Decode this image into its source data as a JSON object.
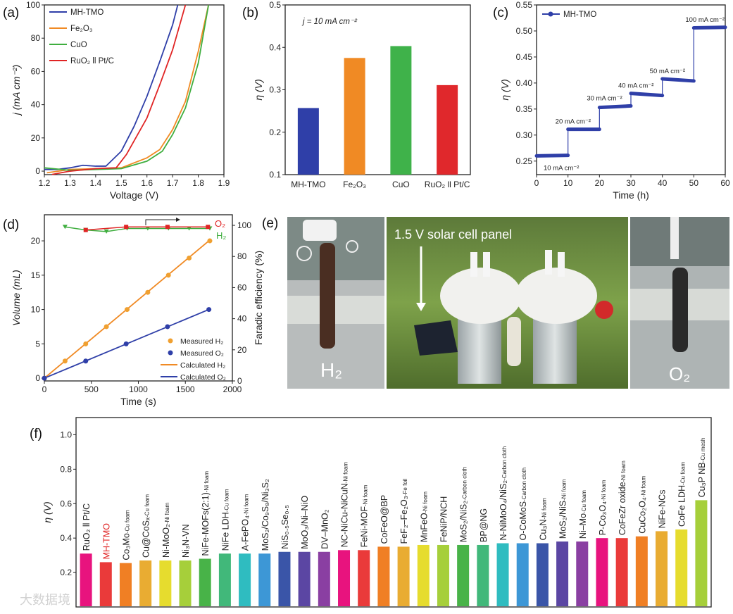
{
  "panel_labels": [
    "(a)",
    "(b)",
    "(c)",
    "(d)",
    "(e)",
    "(f)"
  ],
  "watermark": "大数据境",
  "chart_data": [
    {
      "id": "a",
      "type": "line",
      "xlabel": "Voltage (V)",
      "ylabel": "j (mA cm⁻²)",
      "xlim": [
        1.2,
        1.9
      ],
      "ylim": [
        -2.1,
        100
      ],
      "xticks": [
        1.2,
        1.3,
        1.4,
        1.5,
        1.6,
        1.7,
        1.8,
        1.9
      ],
      "yticks": [
        0,
        20,
        40,
        60,
        80,
        100
      ],
      "legend_position": "top-left",
      "series": [
        {
          "name": "MH-TMO",
          "color": "#2f3fa8",
          "points": [
            [
              1.2,
              1
            ],
            [
              1.25,
              1
            ],
            [
              1.3,
              2
            ],
            [
              1.35,
              3.5
            ],
            [
              1.4,
              3
            ],
            [
              1.44,
              3
            ],
            [
              1.5,
              12
            ],
            [
              1.55,
              27
            ],
            [
              1.6,
              45
            ],
            [
              1.65,
              66
            ],
            [
              1.7,
              88
            ],
            [
              1.72,
              100
            ]
          ]
        },
        {
          "name": "Fe₂O₃",
          "color": "#f08a24",
          "points": [
            [
              1.21,
              -1
            ],
            [
              1.3,
              1
            ],
            [
              1.4,
              1.5
            ],
            [
              1.5,
              2
            ],
            [
              1.6,
              8
            ],
            [
              1.65,
              13
            ],
            [
              1.7,
              25
            ],
            [
              1.75,
              42
            ],
            [
              1.8,
              72
            ],
            [
              1.84,
              100
            ]
          ]
        },
        {
          "name": "CuO",
          "color": "#3fae3f",
          "points": [
            [
              1.2,
              2
            ],
            [
              1.3,
              0.5
            ],
            [
              1.4,
              1
            ],
            [
              1.5,
              1.5
            ],
            [
              1.6,
              6
            ],
            [
              1.66,
              12
            ],
            [
              1.7,
              22
            ],
            [
              1.75,
              38
            ],
            [
              1.8,
              65
            ],
            [
              1.84,
              100
            ]
          ]
        },
        {
          "name": "RuO₂ ll Pt/C",
          "color": "#e02424",
          "points": [
            [
              1.23,
              -2
            ],
            [
              1.3,
              0
            ],
            [
              1.4,
              1.5
            ],
            [
              1.48,
              2
            ],
            [
              1.52,
              10
            ],
            [
              1.6,
              32
            ],
            [
              1.65,
              52
            ],
            [
              1.7,
              73
            ],
            [
              1.75,
              100
            ]
          ]
        }
      ]
    },
    {
      "id": "b",
      "type": "bar",
      "annotation": "j = 10 mA cm⁻²",
      "xlabel": "",
      "ylabel": "η (V)",
      "ylim": [
        0.1,
        0.5
      ],
      "yticks": [
        0.1,
        0.2,
        0.3,
        0.4,
        0.5
      ],
      "categories": [
        "MH-TMO",
        "Fe₂O₃",
        "CuO",
        "RuO₂ ll Pt/C"
      ],
      "values": [
        0.257,
        0.375,
        0.403,
        0.311
      ],
      "colors": [
        "#2f3fa8",
        "#f08a24",
        "#3fb24a",
        "#e0282c"
      ]
    },
    {
      "id": "c",
      "type": "line",
      "xlabel": "Time (h)",
      "ylabel": "η (V)",
      "xlim": [
        0,
        60
      ],
      "ylim": [
        0.224,
        0.55
      ],
      "xticks": [
        0,
        10,
        20,
        30,
        40,
        50,
        60
      ],
      "yticks": [
        0.25,
        0.3,
        0.35,
        0.4,
        0.45,
        0.5,
        0.55
      ],
      "legend": "MH-TMO",
      "legend_position": "top-left",
      "color": "#2f3fa8",
      "steps": [
        {
          "x": [
            0,
            10
          ],
          "y": [
            0.26,
            0.261
          ],
          "label": "10 mA cm⁻²"
        },
        {
          "x": [
            10,
            20
          ],
          "y": [
            0.311,
            0.311
          ],
          "label": "20 mA cm⁻²"
        },
        {
          "x": [
            20,
            30
          ],
          "y": [
            0.353,
            0.356
          ],
          "label": "30 mA cm⁻²"
        },
        {
          "x": [
            30,
            40
          ],
          "y": [
            0.38,
            0.376
          ],
          "label": "40 mA cm⁻²"
        },
        {
          "x": [
            40,
            50
          ],
          "y": [
            0.408,
            0.404
          ],
          "label": "50 mA cm⁻²"
        },
        {
          "x": [
            50,
            60
          ],
          "y": [
            0.506,
            0.507
          ],
          "label": "100 mA cm⁻²"
        }
      ]
    },
    {
      "id": "d",
      "type": "scatter",
      "xlabel": "Time (s)",
      "ylabel": "Volume (mL)",
      "y2label": "Faradic efficiency (%)",
      "xlim": [
        0,
        2000
      ],
      "ylim": [
        -0.4,
        23.8
      ],
      "y2lim": [
        0,
        106.8
      ],
      "xticks": [
        0,
        500,
        1000,
        1500,
        2000
      ],
      "yticks": [
        0,
        5,
        10,
        15,
        20
      ],
      "y2ticks": [
        0,
        20,
        40,
        60,
        80,
        100
      ],
      "legend_position": "bottom-right",
      "measured_h2": {
        "name": "Measured H₂",
        "color": "#f0a030",
        "x": [
          0,
          220,
          440,
          660,
          880,
          1100,
          1320,
          1540,
          1760
        ],
        "y": [
          0,
          2.5,
          5,
          7.5,
          10,
          12.5,
          15,
          17.5,
          20
        ]
      },
      "measured_o2": {
        "name": "Measured O₂",
        "color": "#2f3fa8",
        "x": [
          0,
          440,
          870,
          1310,
          1750
        ],
        "y": [
          0,
          2.5,
          5,
          7.5,
          10
        ]
      },
      "calculated_h2": {
        "name": "Calculated H₂",
        "color": "#f08a24",
        "x": [
          0,
          1750
        ],
        "y": [
          0,
          20
        ]
      },
      "calculated_o2": {
        "name": "Calculated O₂",
        "color": "#2f3fa8",
        "x": [
          0,
          1750
        ],
        "y": [
          0,
          10
        ]
      },
      "fe_o2": {
        "name": "O₂",
        "color": "#e02424",
        "x": [
          440,
          870,
          1310,
          1740
        ],
        "y": [
          97,
          99,
          99,
          99
        ]
      },
      "fe_h2": {
        "name": "H₂",
        "color": "#3fae3f",
        "x": [
          220,
          440,
          660,
          880,
          1100,
          1320,
          1540,
          1760
        ],
        "y": [
          99,
          97,
          96,
          98,
          98,
          98,
          98,
          98
        ]
      }
    },
    {
      "id": "f",
      "type": "bar",
      "xlabel": "",
      "ylabel": "η (V)",
      "ylim": [
        0,
        1.1
      ],
      "yticks": [
        0.2,
        0.4,
        0.6,
        0.8,
        1.0
      ],
      "highlight_color": "#e02424",
      "bars": [
        {
          "name": "RuO₂ ll Pt/C",
          "sub": "",
          "value": 0.31,
          "color": "#e8137e"
        },
        {
          "name": "MH-TMO",
          "sub": "",
          "value": 0.26,
          "color": "#ea3a3a",
          "highlight": true
        },
        {
          "name": "Co₃Mo",
          "sub": "-Cu foam",
          "value": 0.255,
          "color": "#f07f24"
        },
        {
          "name": "Cu@CoSₓ",
          "sub": "-Cu foam",
          "value": 0.27,
          "color": "#e9ac32"
        },
        {
          "name": "Ni-MoO₂",
          "sub": "-Ni foam",
          "value": 0.27,
          "color": "#e6dc2e"
        },
        {
          "name": "Ni₃N-VN",
          "sub": "",
          "value": 0.27,
          "color": "#a6cf3a"
        },
        {
          "name": "NiFe-MOFs(2:1)",
          "sub": "-Ni foam",
          "value": 0.28,
          "color": "#48b348"
        },
        {
          "name": "NiFe LDH",
          "sub": "-Cu foam",
          "value": 0.31,
          "color": "#41b87a"
        },
        {
          "name": "A-FePO₄",
          "sub": "-Ni foam",
          "value": 0.31,
          "color": "#2fbcc0"
        },
        {
          "name": "MoS₂/Co₉S₈/Ni₃S₂",
          "sub": "",
          "value": 0.31,
          "color": "#3d97d6"
        },
        {
          "name": "NiS₀.₅Se₀.₅",
          "sub": "",
          "value": 0.32,
          "color": "#3a55a8"
        },
        {
          "name": "MoO₃/Ni–NiO",
          "sub": "",
          "value": 0.32,
          "color": "#5b46a3"
        },
        {
          "name": "DV–MnO₂",
          "sub": "",
          "value": 0.32,
          "color": "#8a3fa2"
        },
        {
          "name": "NC-NiCu-NiCuN",
          "sub": "-Ni foam",
          "value": 0.33,
          "color": "#e8137e"
        },
        {
          "name": "FeNi-MOF",
          "sub": "-Ni foam",
          "value": 0.33,
          "color": "#ea3a3a"
        },
        {
          "name": "CoFeO@BP",
          "sub": "",
          "value": 0.35,
          "color": "#f07f24"
        },
        {
          "name": "FeF₂–Fe₂O₃",
          "sub": "-Fe foil",
          "value": 0.35,
          "color": "#e9ac32"
        },
        {
          "name": "MnFeO",
          "sub": "-Ni foam",
          "value": 0.36,
          "color": "#e6dc2e"
        },
        {
          "name": "FeNiP/NCH",
          "sub": "",
          "value": 0.36,
          "color": "#a6cf3a"
        },
        {
          "name": "MoS₂/NiS₂",
          "sub": "-Carbon cloth",
          "value": 0.36,
          "color": "#48b348"
        },
        {
          "name": "BP@NG",
          "sub": "",
          "value": 0.36,
          "color": "#41b87a"
        },
        {
          "name": "N-NiMoO₄/NiS₂",
          "sub": "-Carbon cloth",
          "value": 0.37,
          "color": "#2fbcc0"
        },
        {
          "name": "O-CoMoS",
          "sub": "-Carbon cloth",
          "value": 0.37,
          "color": "#3d97d6"
        },
        {
          "name": "Cu₃N",
          "sub": "-Ni foam",
          "value": 0.37,
          "color": "#3a55a8"
        },
        {
          "name": "MoS₂/NiS",
          "sub": "-Ni foam",
          "value": 0.38,
          "color": "#5b46a3"
        },
        {
          "name": "Ni–Mo",
          "sub": "-Cu foam",
          "value": 0.38,
          "color": "#8a3fa2"
        },
        {
          "name": "P-Co₃O₄",
          "sub": "-Ni foam",
          "value": 0.4,
          "color": "#e8137e"
        },
        {
          "name": "CoFeZr oxide",
          "sub": "-Ni foam",
          "value": 0.4,
          "color": "#ea3a3a"
        },
        {
          "name": "CuCo₂O₄",
          "sub": "-Ni foam",
          "value": 0.41,
          "color": "#f07f24"
        },
        {
          "name": "NiFe-NCs",
          "sub": "",
          "value": 0.44,
          "color": "#e9ac32"
        },
        {
          "name": "CoFe LDH",
          "sub": "-Cu foam",
          "value": 0.45,
          "color": "#e6dc2e"
        },
        {
          "name": "Cu₃P NB",
          "sub": "-Cu mesh",
          "value": 0.62,
          "color": "#a6cf3a"
        }
      ]
    }
  ],
  "photos": {
    "caption_center": "1.5 V solar cell panel",
    "left_label": "H₂",
    "right_label": "O₂"
  }
}
